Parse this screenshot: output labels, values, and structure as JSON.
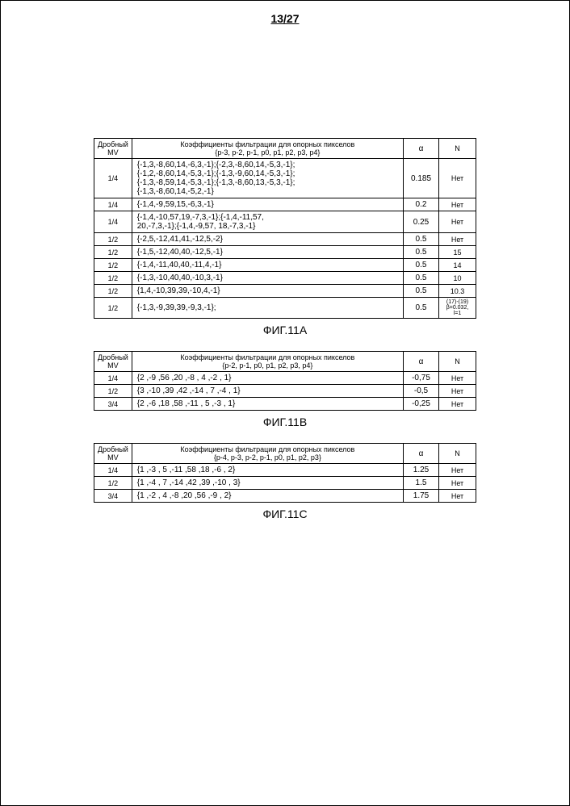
{
  "pageNumber": "13/27",
  "tables": [
    {
      "headers": {
        "mv_top": "Дробный",
        "mv_bot": "MV",
        "coef": "Коэффициенты фильтрации для опорных пикселов",
        "coef_sub": "{p-3, p-2, p-1, p0, p1, p2, p3, p4}",
        "alpha": "α",
        "n": "N"
      },
      "rows": [
        {
          "mv": "1/4",
          "coef": "{-1,3,-8,60,14,-6,3,-1};{-2,3,-8,60,14,-5,3,-1};\n{-1,2,-8,60,14,-5,3,-1};{-1,3,-9,60,14,-5,3,-1};\n{-1,3,-8,59,14,-5,3,-1};{-1,3,-8,60,13,-5,3,-1};\n{-1,3,-8,60,14,-5,2,-1}",
          "alpha": "0.185",
          "n": "Нет"
        },
        {
          "mv": "1/4",
          "coef": "{-1,4,-9,59,15,-6,3,-1}",
          "alpha": "0.2",
          "n": "Нет"
        },
        {
          "mv": "1/4",
          "coef": "{-1,4,-10,57,19,-7,3,-1};{-1,4,-11,57,\n20,-7,3,-1};{-1,4,-9,57, 18,-7,3,-1}",
          "alpha": "0.25",
          "n": "Нет"
        },
        {
          "mv": "1/2",
          "coef": "{-2,5,-12,41,41,-12,5,-2}",
          "alpha": "0.5",
          "n": "Нет"
        },
        {
          "mv": "1/2",
          "coef": "{-1,5,-12,40,40,-12,5,-1}",
          "alpha": "0.5",
          "n": "15"
        },
        {
          "mv": "1/2",
          "coef": "{-1,4,-11,40,40,-11,4,-1}",
          "alpha": "0.5",
          "n": "14"
        },
        {
          "mv": "1/2",
          "coef": "{-1,3,-10,40,40,-10,3,-1}",
          "alpha": "0.5",
          "n": "10"
        },
        {
          "mv": "1/2",
          "coef": "{1,4,-10,39,39,-10,4,-1}",
          "alpha": "0.5",
          "n": "10.3"
        },
        {
          "mv": "1/2",
          "coef": "{-1,3,-9,39,39,-9,3,-1};",
          "alpha": "0.5",
          "n_multi": [
            "(17)-(19)",
            "β=0.032, l=1"
          ]
        }
      ],
      "caption": "ФИГ.11A"
    },
    {
      "headers": {
        "mv_top": "Дробный",
        "mv_bot": "MV",
        "coef": "Коэффициенты фильтрации для опорных пикселов",
        "coef_sub": "{p-2, p-1, p0, p1, p2, p3, p4}",
        "alpha": "α",
        "n": "N"
      },
      "rows": [
        {
          "mv": "1/4",
          "coef": "{2 ,-9 ,56 ,20 ,-8 , 4 ,-2 , 1}",
          "alpha": "-0,75",
          "n": "Нет"
        },
        {
          "mv": "1/2",
          "coef": "{3 ,-10 ,39 ,42 ,-14 , 7 ,-4 , 1}",
          "alpha": "-0,5",
          "n": "Нет"
        },
        {
          "mv": "3/4",
          "coef": "{2 ,-6 ,18 ,58 ,-11 , 5 ,-3 , 1}",
          "alpha": "-0,25",
          "n": "Нет"
        }
      ],
      "caption": "ФИГ.11B"
    },
    {
      "headers": {
        "mv_top": "Дробный",
        "mv_bot": "MV",
        "coef": "Коэффициенты фильтрации для опорных пикселов",
        "coef_sub": "{p-4, p-3, p-2, p-1, p0, p1, p2, p3}",
        "alpha": "α",
        "n": "N"
      },
      "rows": [
        {
          "mv": "1/4",
          "coef": "{1 ,-3 , 5 ,-11 ,58 ,18 ,-6 , 2}",
          "alpha": "1.25",
          "n": "Нет"
        },
        {
          "mv": "1/2",
          "coef": "{1 ,-4 , 7 ,-14 ,42 ,39 ,-10 , 3}",
          "alpha": "1.5",
          "n": "Нет"
        },
        {
          "mv": "3/4",
          "coef": "{1 ,-2 , 4 ,-8 ,20 ,56 ,-9 , 2}",
          "alpha": "1.75",
          "n": "Нет"
        }
      ],
      "caption": "ФИГ.11C"
    }
  ]
}
